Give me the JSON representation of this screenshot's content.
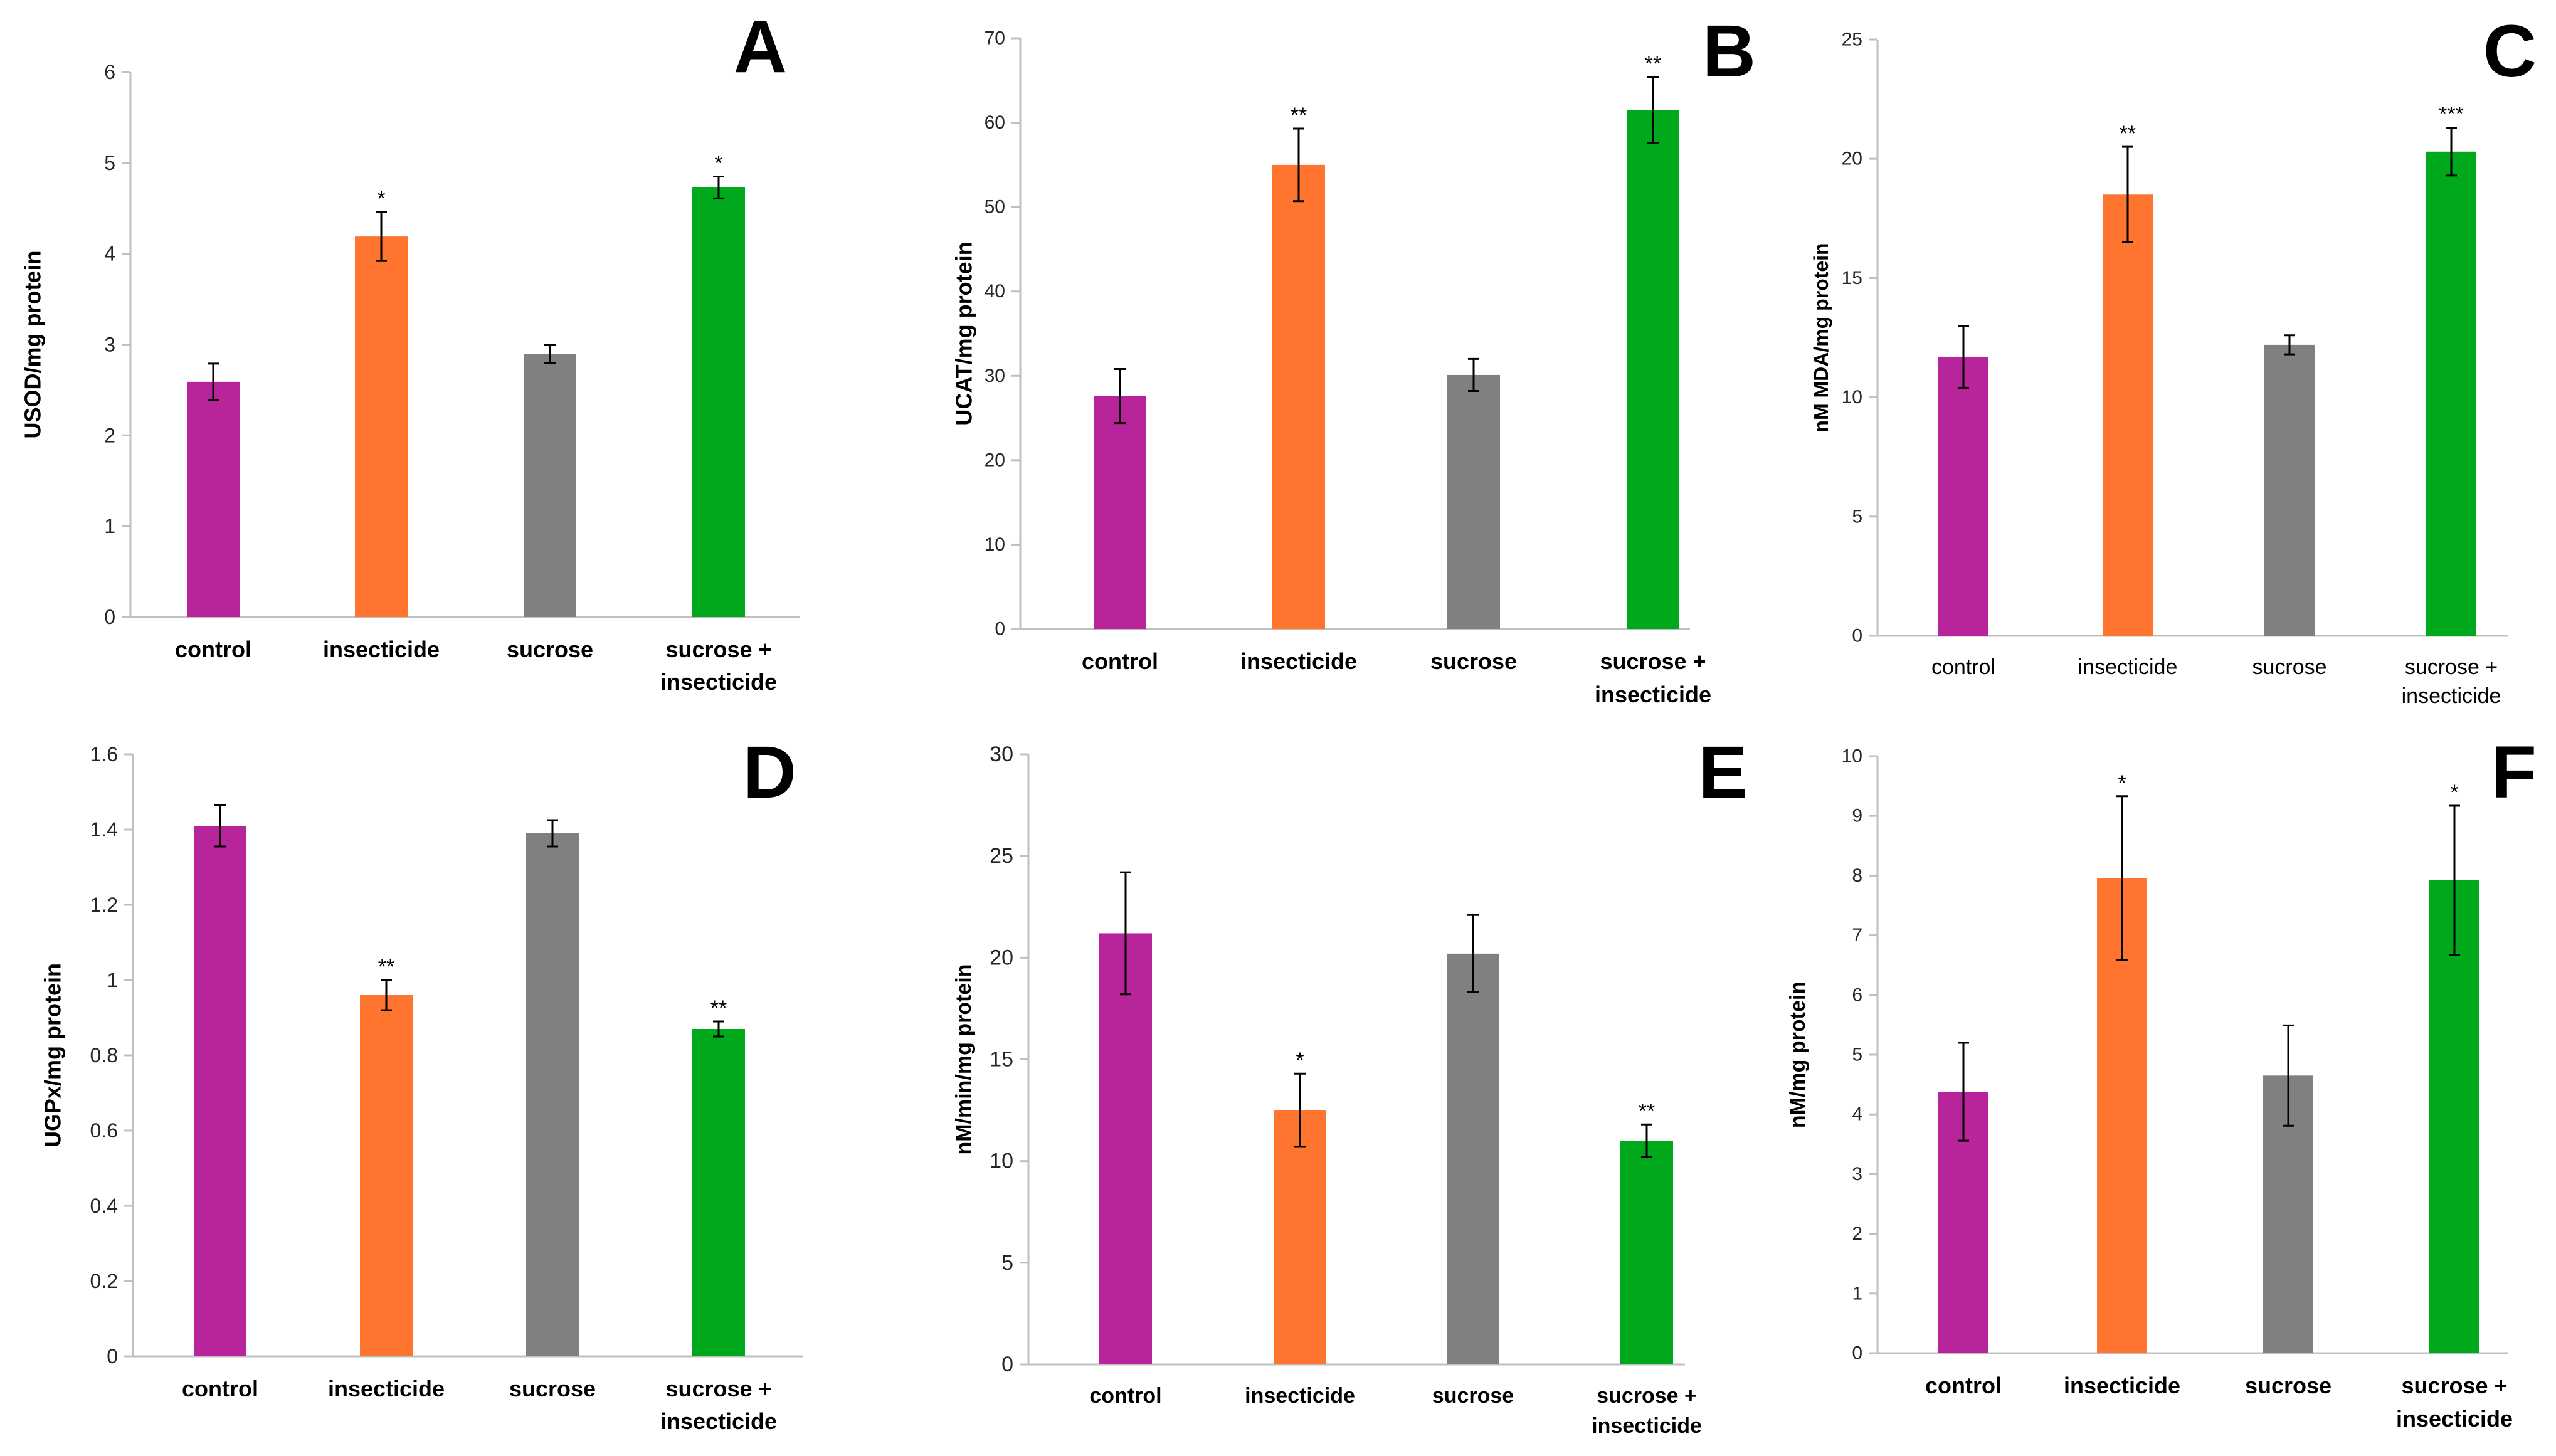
{
  "chart_data": [
    {
      "panel": "A",
      "type": "bar",
      "ylabel": "USOD/mg protein",
      "ylim": [
        0,
        6
      ],
      "ystep": 1,
      "tick_labels": [
        "0",
        "1",
        "2",
        "3",
        "4",
        "5",
        "6"
      ],
      "categories": [
        "control",
        "insecticide",
        "sucrose",
        "sucrose +\ninsecticide"
      ],
      "values": [
        2.59,
        4.19,
        2.9,
        4.73
      ],
      "errors": [
        0.2,
        0.27,
        0.1,
        0.12
      ],
      "significance": [
        "",
        "*",
        "",
        "*"
      ],
      "colors": [
        "#B8259A",
        "#FF7530",
        "#808080",
        "#00A81C"
      ],
      "bold_categories": true
    },
    {
      "panel": "B",
      "type": "bar",
      "ylabel": "UCAT/mg protein",
      "ylim": [
        0,
        70
      ],
      "ystep": 10,
      "tick_labels": [
        "0",
        "10",
        "20",
        "30",
        "40",
        "50",
        "60",
        "70"
      ],
      "categories": [
        "control",
        "insecticide",
        "sucrose",
        "sucrose +\ninsecticide"
      ],
      "values": [
        27.6,
        55.0,
        30.1,
        61.5
      ],
      "errors": [
        3.2,
        4.3,
        1.9,
        3.9
      ],
      "significance": [
        "",
        "**",
        "",
        "**"
      ],
      "colors": [
        "#B8259A",
        "#FF7530",
        "#808080",
        "#00A81C"
      ],
      "bold_categories": true
    },
    {
      "panel": "C",
      "type": "bar",
      "ylabel": "nM MDA/mg protein",
      "ylim": [
        0,
        25
      ],
      "ystep": 5,
      "tick_labels": [
        "0",
        "5",
        "10",
        "15",
        "20",
        "25"
      ],
      "categories": [
        "control",
        "insecticide",
        "sucrose",
        "sucrose +\ninsecticide"
      ],
      "values": [
        11.7,
        18.5,
        12.2,
        20.3
      ],
      "errors": [
        1.3,
        2.0,
        0.4,
        1.0
      ],
      "significance": [
        "",
        "**",
        "",
        "***"
      ],
      "colors": [
        "#B8259A",
        "#FF7530",
        "#808080",
        "#00A81C"
      ],
      "bold_categories": false
    },
    {
      "panel": "D",
      "type": "bar",
      "ylabel": "UGPx/mg protein",
      "ylim": [
        0,
        1.6
      ],
      "ystep": 0.2,
      "tick_labels": [
        "0",
        "0.2",
        "0.4",
        "0.6",
        "0.8",
        "1",
        "1.2",
        "1.4",
        "1.6"
      ],
      "categories": [
        "control",
        "insecticide",
        "sucrose",
        "sucrose +\ninsecticide"
      ],
      "values": [
        1.41,
        0.96,
        1.39,
        0.87
      ],
      "errors": [
        0.055,
        0.04,
        0.035,
        0.02
      ],
      "significance": [
        "",
        "**",
        "",
        "**"
      ],
      "colors": [
        "#B8259A",
        "#FF7530",
        "#808080",
        "#00A81C"
      ],
      "bold_categories": true
    },
    {
      "panel": "E",
      "type": "bar",
      "ylabel": "nM/min/mg protein",
      "ylim": [
        0,
        30
      ],
      "ystep": 5,
      "tick_labels": [
        "0",
        "5",
        "10",
        "15",
        "20",
        "25",
        "30"
      ],
      "categories": [
        "control",
        "insecticide",
        "sucrose",
        "sucrose +\ninsecticide"
      ],
      "values": [
        21.2,
        12.5,
        20.2,
        11.0
      ],
      "errors": [
        3.0,
        1.8,
        1.9,
        0.8
      ],
      "significance": [
        "",
        "*",
        "",
        "**"
      ],
      "colors": [
        "#B8259A",
        "#FF7530",
        "#808080",
        "#00A81C"
      ],
      "bold_categories": true
    },
    {
      "panel": "F",
      "type": "bar",
      "ylabel": "nM/mg protein",
      "ylim": [
        0,
        10
      ],
      "ystep": 1,
      "tick_labels": [
        "0",
        "1",
        "2",
        "3",
        "4",
        "5",
        "6",
        "7",
        "8",
        "9",
        "10"
      ],
      "categories": [
        "control",
        "insecticide",
        "sucrose",
        "sucrose +\ninsecticide"
      ],
      "values": [
        4.38,
        7.96,
        4.65,
        7.92
      ],
      "errors": [
        0.82,
        1.37,
        0.84,
        1.25
      ],
      "significance": [
        "",
        "*",
        "",
        "*"
      ],
      "colors": [
        "#B8259A",
        "#FF7530",
        "#808080",
        "#00A81C"
      ],
      "bold_categories": true
    }
  ]
}
